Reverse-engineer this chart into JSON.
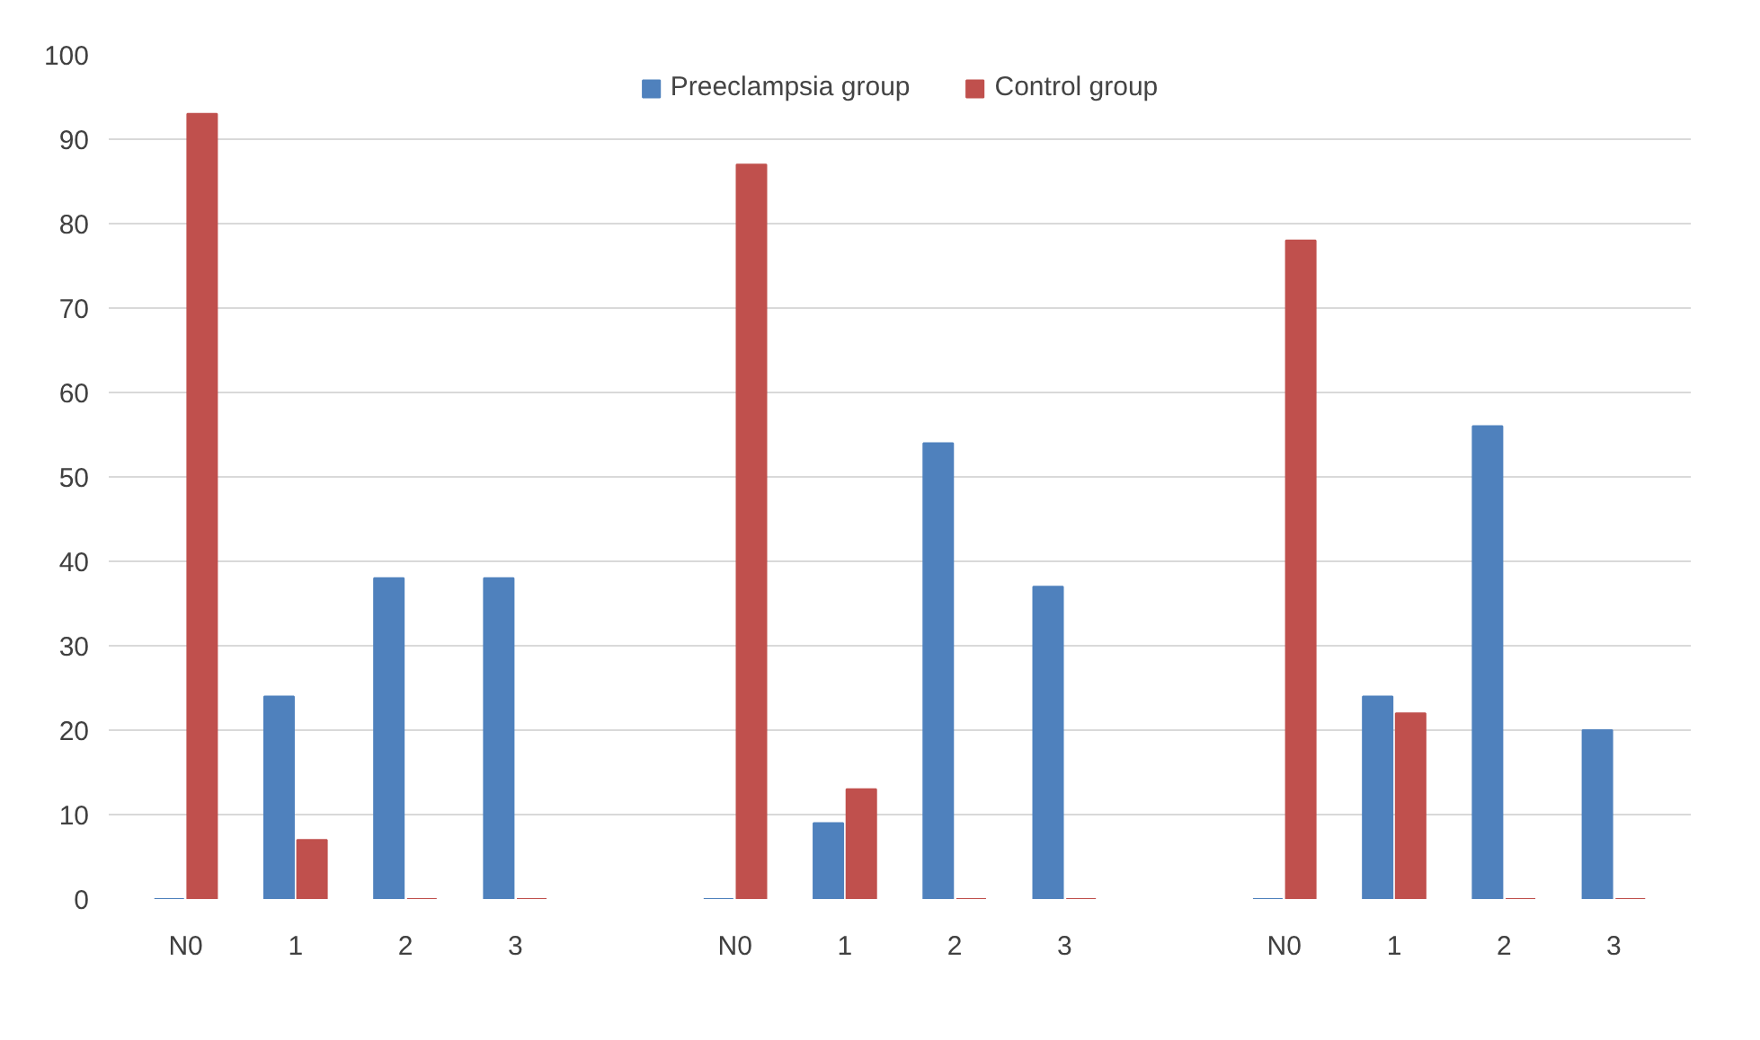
{
  "chart_data": {
    "type": "bar",
    "categories": [
      "N0",
      "1",
      "2",
      "3",
      null,
      "N0",
      "1",
      "2",
      "3",
      null,
      "N0",
      "1",
      "2",
      "3"
    ],
    "series": [
      {
        "name": "Preeclampsia group",
        "color": "#4f81bd",
        "values": [
          0,
          24,
          38,
          38,
          null,
          0,
          9,
          54,
          37,
          null,
          0,
          24,
          56,
          20
        ]
      },
      {
        "name": "Control group",
        "color": "#c0504d",
        "values": [
          93,
          7,
          0,
          0,
          null,
          87,
          13,
          0,
          0,
          null,
          78,
          22,
          0,
          0
        ]
      }
    ],
    "ylim": [
      0,
      100
    ],
    "yticks": [
      0,
      10,
      20,
      30,
      40,
      50,
      60,
      70,
      80,
      90,
      100
    ],
    "grid": "y",
    "legend": "top"
  }
}
